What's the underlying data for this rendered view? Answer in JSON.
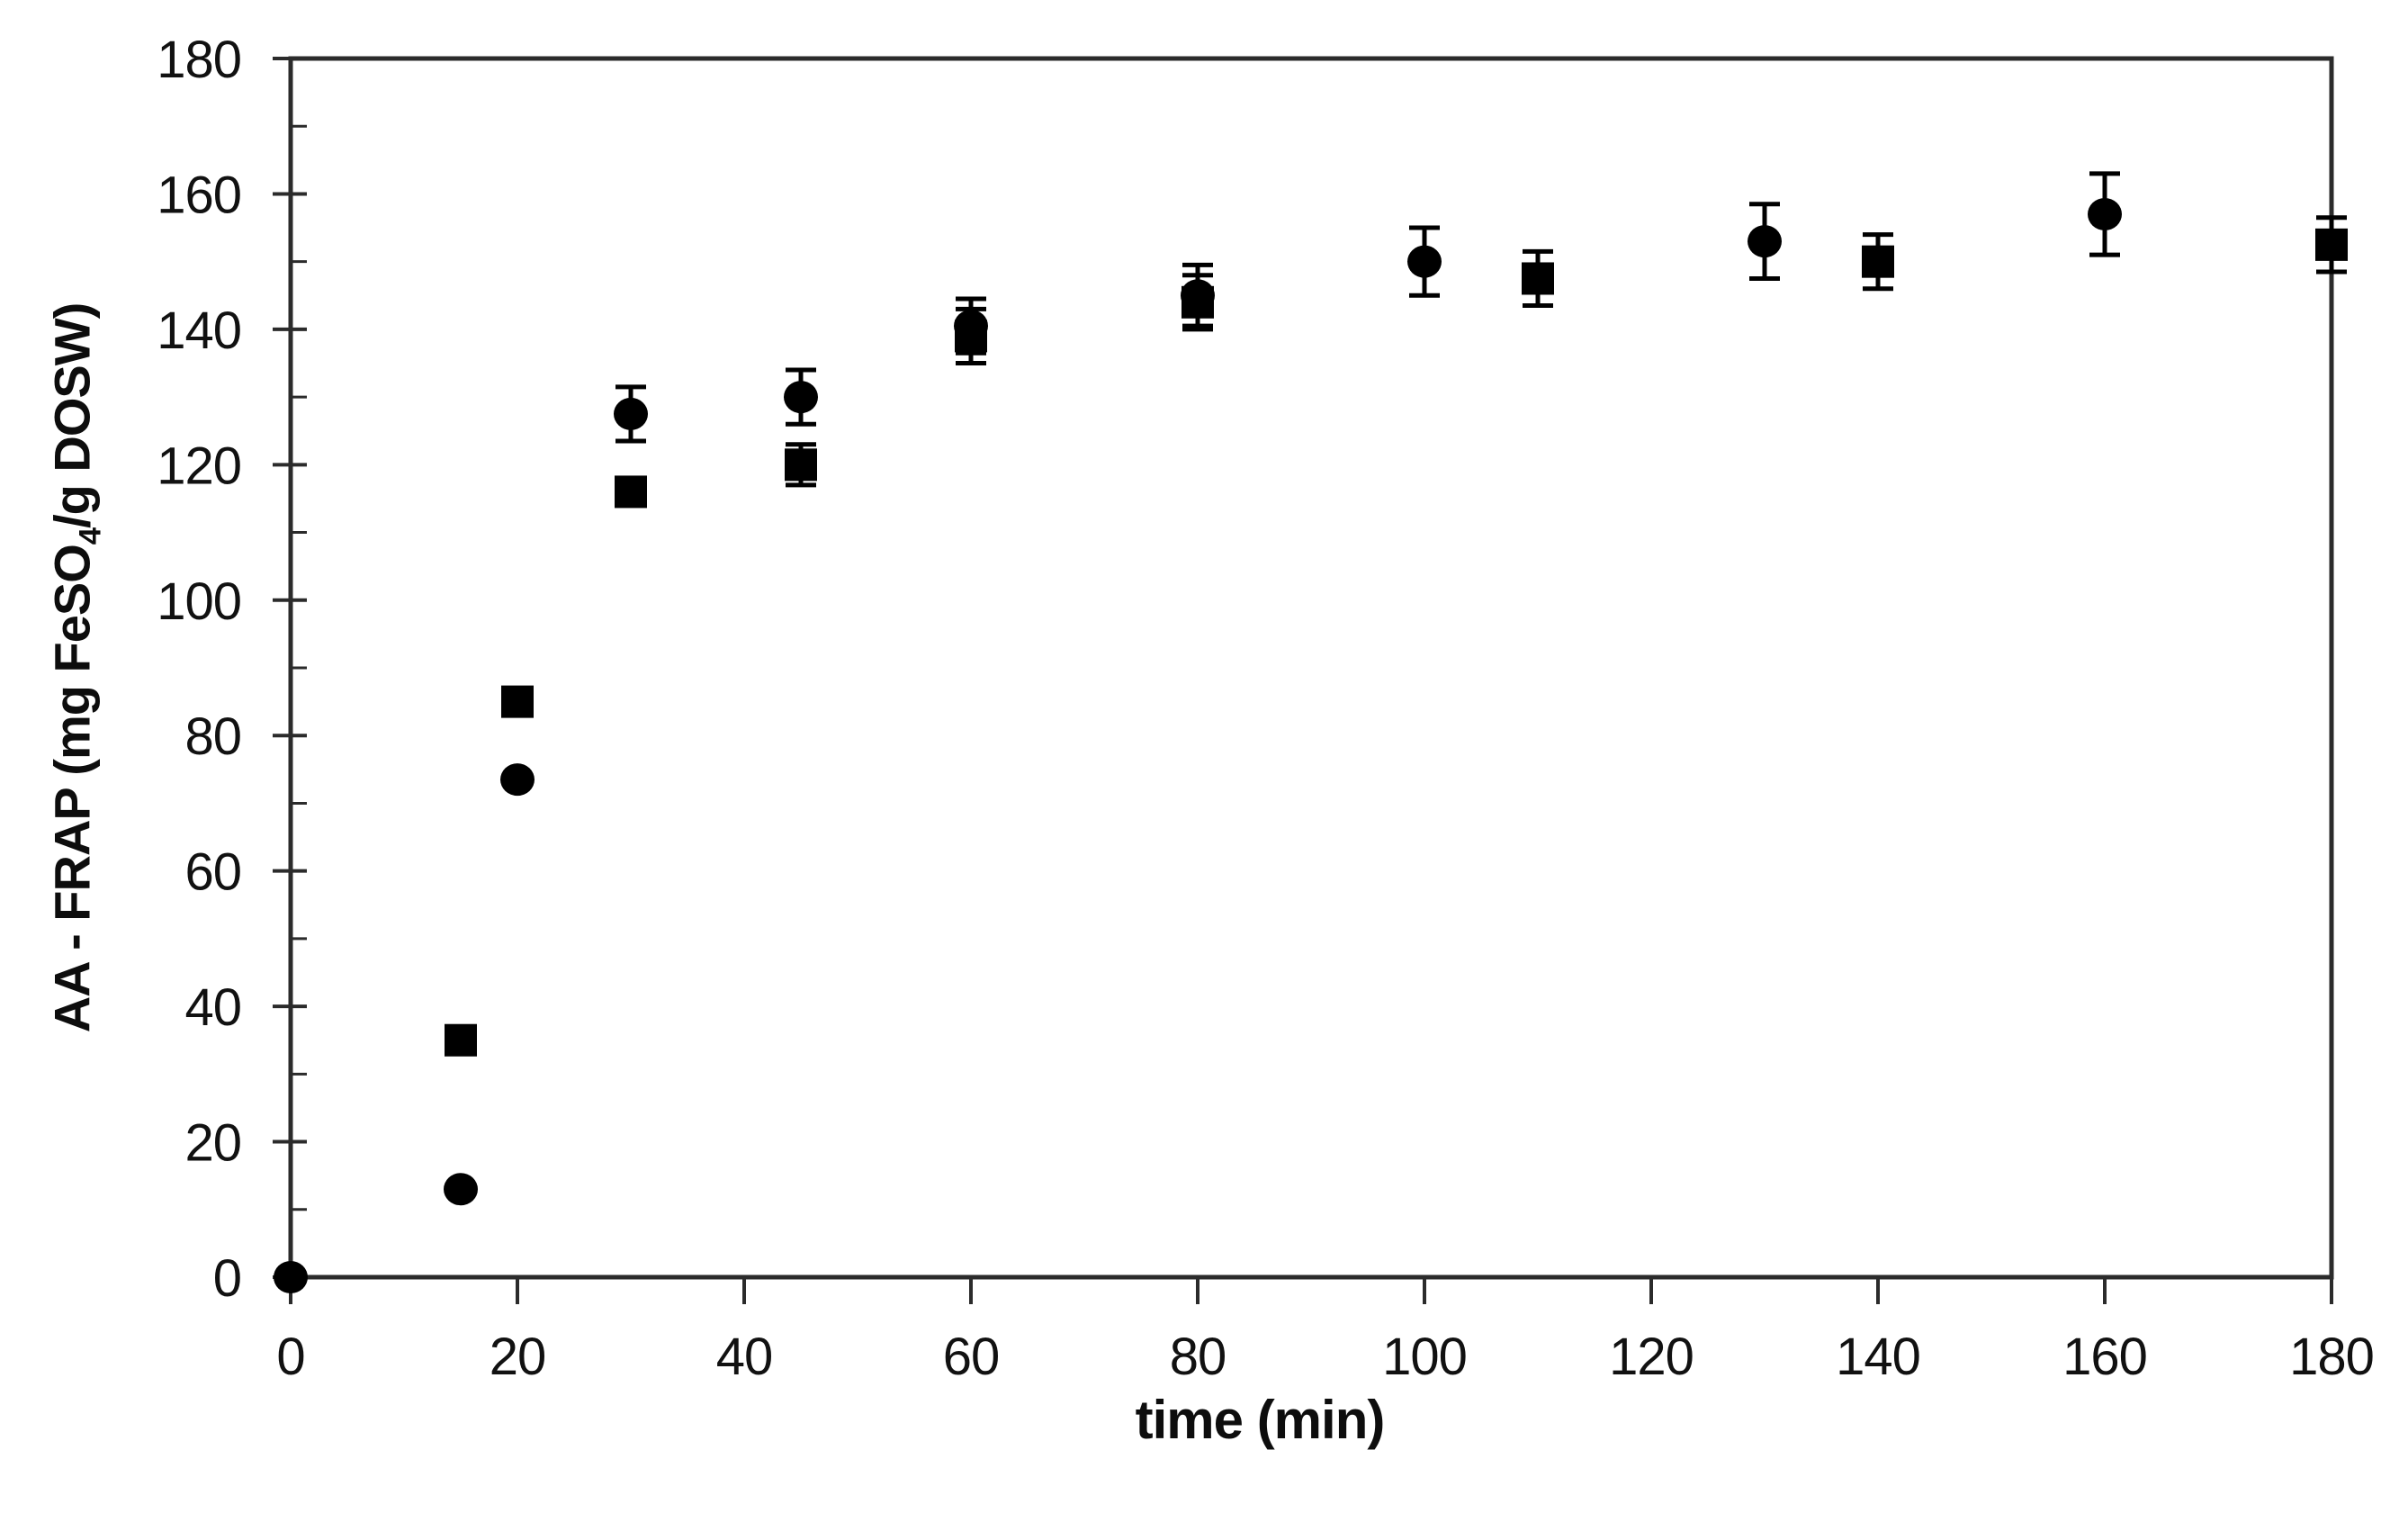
{
  "colors": {
    "background": "#ffffff",
    "axis": "#2b2b2b",
    "marker": "#000000",
    "error_bar": "#000000",
    "text": "#111111"
  },
  "axis_titles": {
    "x": "time (min)",
    "y_pre": "AA - FRAP (mg FeSO",
    "y_sub": "4",
    "y_post": "/g DOSW)"
  },
  "chart_data": {
    "type": "scatter",
    "title": "",
    "xlabel": "time (min)",
    "ylabel": "AA - FRAP (mg FeSO4/g DOSW)",
    "xlim": [
      0,
      180
    ],
    "ylim": [
      0,
      180
    ],
    "x_ticks": [
      0,
      20,
      40,
      60,
      80,
      100,
      120,
      140,
      160,
      180
    ],
    "y_ticks": [
      0,
      20,
      40,
      60,
      80,
      100,
      120,
      140,
      160,
      180
    ],
    "y_minor_ticks": [
      10,
      30,
      50,
      70,
      90,
      110,
      130,
      150,
      170
    ],
    "grid": false,
    "frame": true,
    "legend": null,
    "series": [
      {
        "name": "circle-series",
        "marker": "circle",
        "x": [
          0,
          15,
          20,
          30,
          45,
          60,
          80,
          100,
          130,
          160
        ],
        "y": [
          0,
          13,
          73.5,
          127.5,
          130,
          140.5,
          145,
          150,
          153,
          157
        ],
        "yerr": [
          0,
          0,
          0,
          4,
          4,
          4,
          4.5,
          5,
          5.5,
          6
        ]
      },
      {
        "name": "square-series",
        "marker": "square",
        "x": [
          15,
          20,
          30,
          45,
          60,
          80,
          110,
          140,
          180
        ],
        "y": [
          35,
          85,
          116,
          120,
          139,
          144,
          147.5,
          150,
          152.5
        ],
        "yerr": [
          0,
          0,
          0,
          3,
          4,
          4,
          4,
          4,
          4
        ]
      }
    ]
  }
}
